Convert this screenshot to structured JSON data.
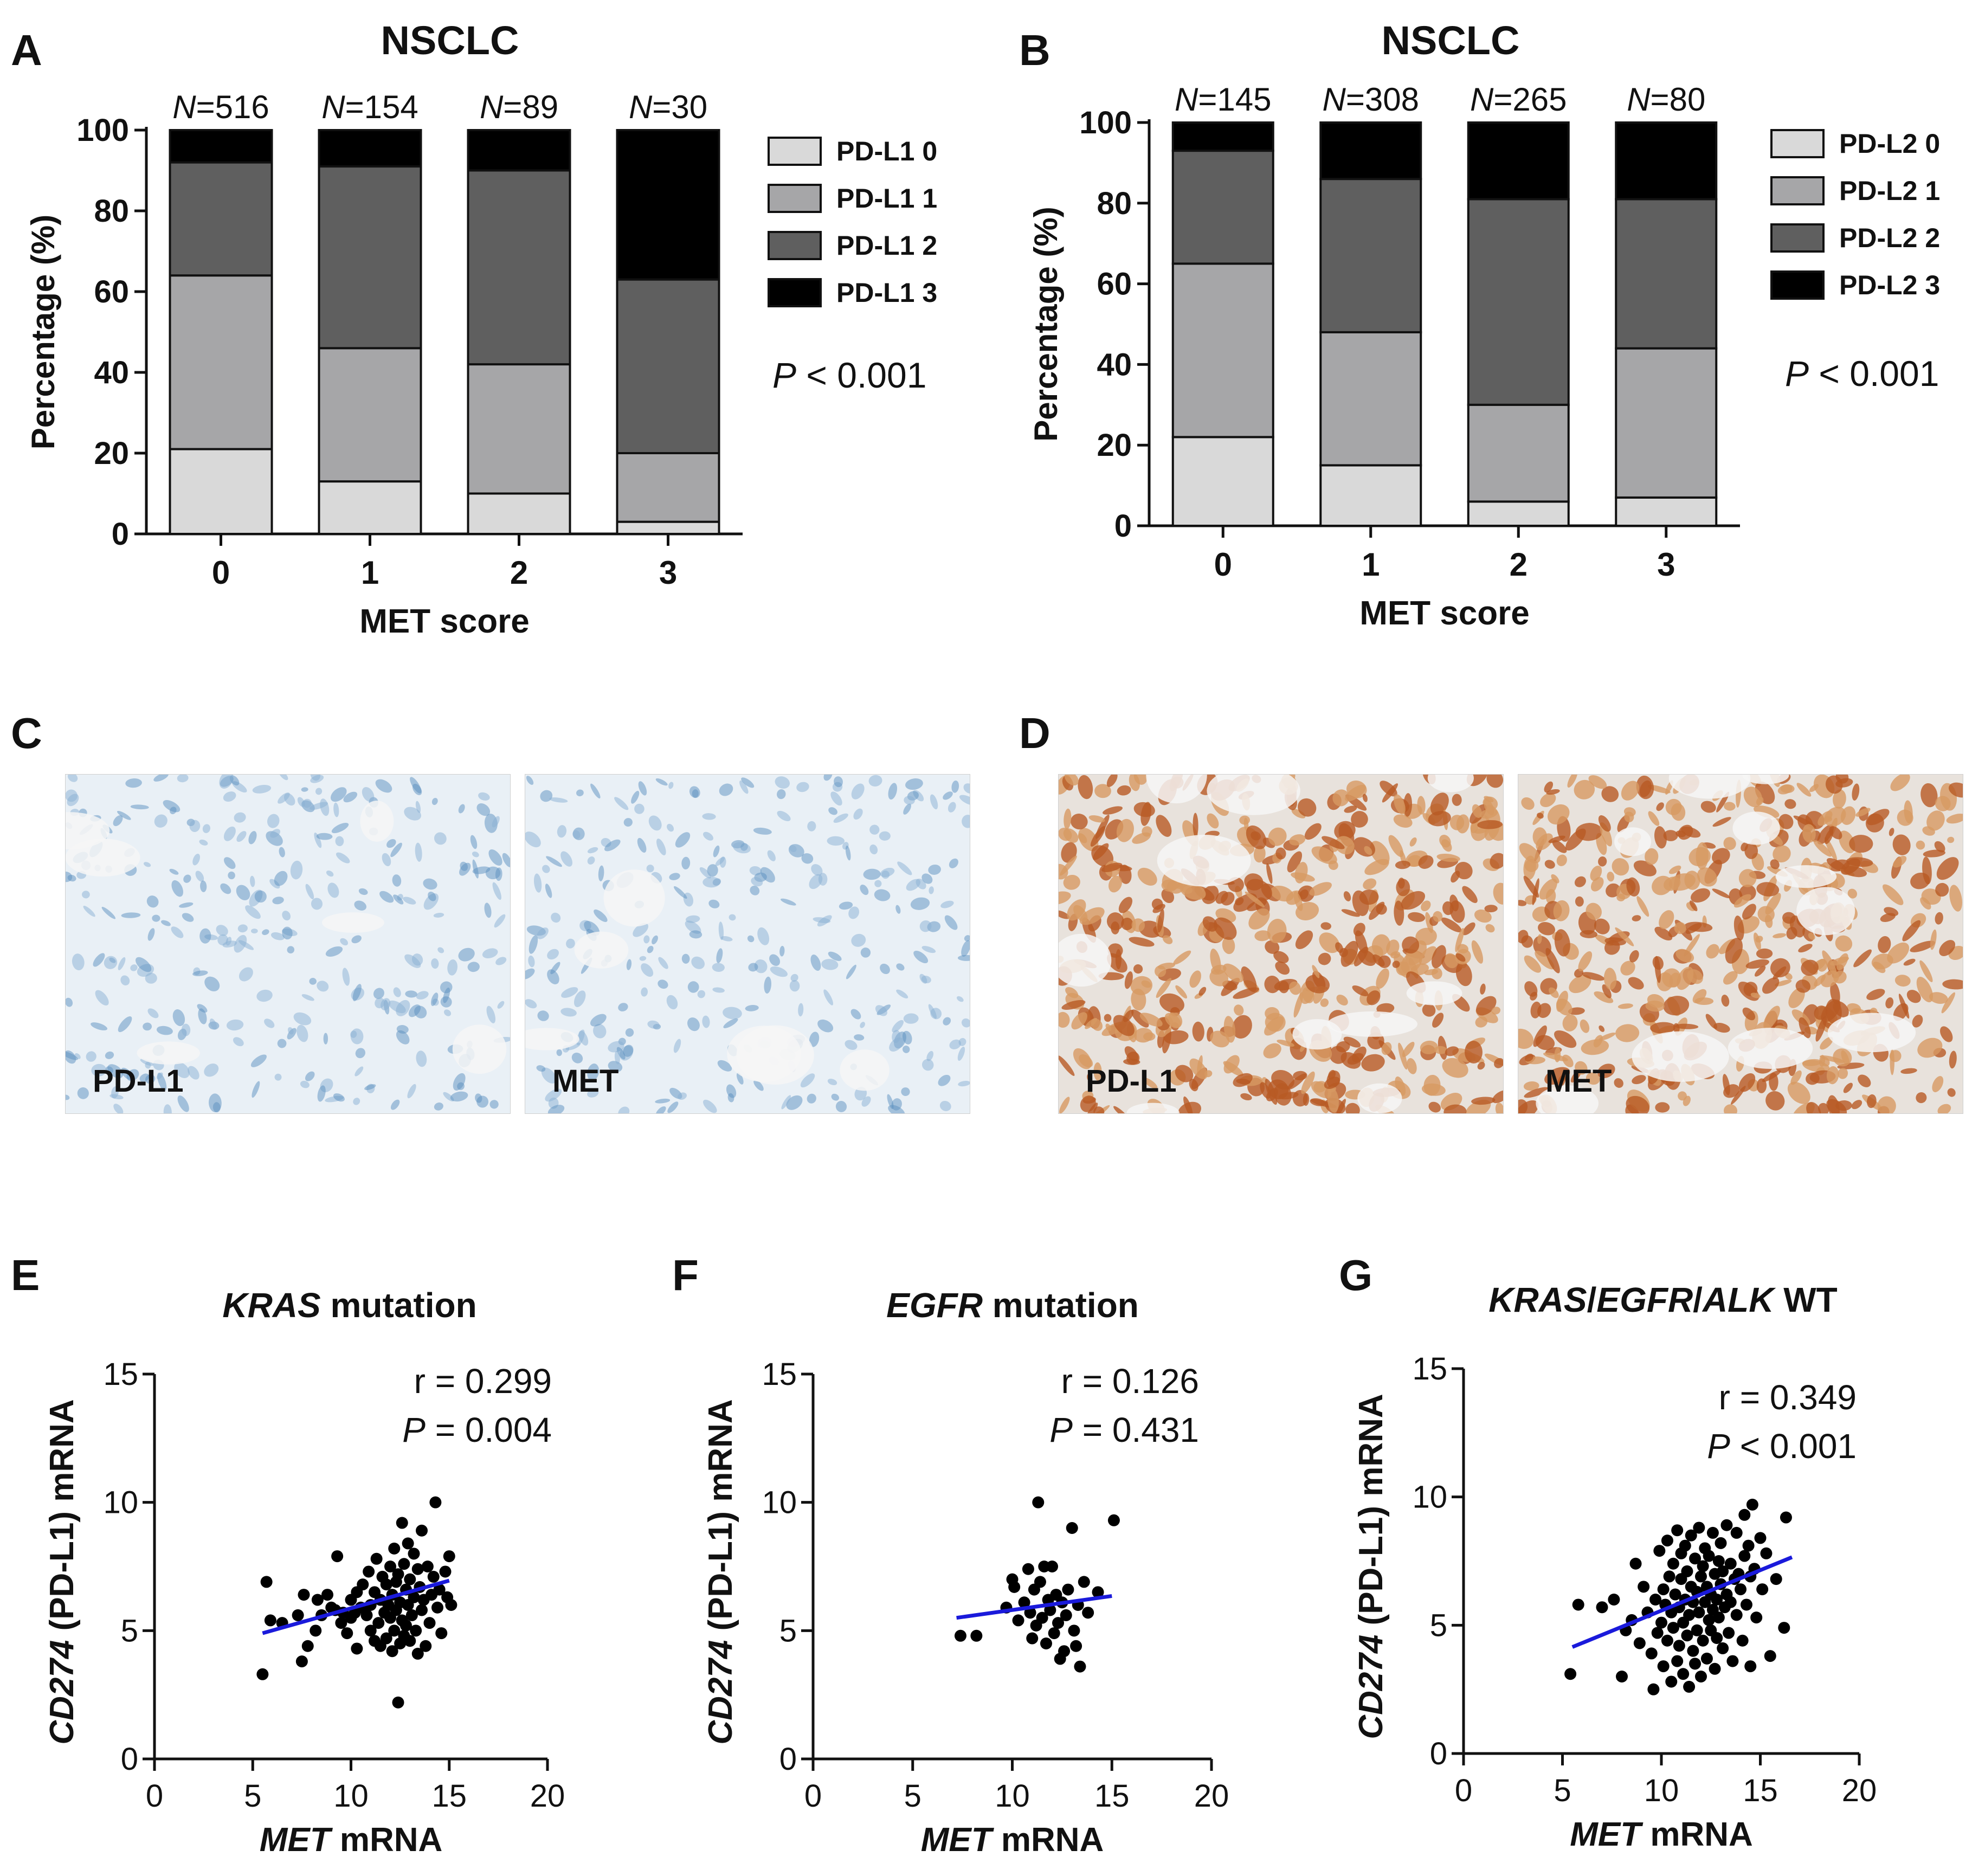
{
  "panel_letters": [
    "A",
    "B",
    "C",
    "D",
    "E",
    "F",
    "G"
  ],
  "chart_data": [
    {
      "id": "A",
      "type": "bar",
      "stacked": true,
      "title": "NSCLC",
      "xlabel": "MET score",
      "ylabel": "Percentage (%)",
      "ylim": [
        0,
        100
      ],
      "yticks": [
        0,
        20,
        40,
        60,
        80,
        100
      ],
      "categories": [
        "0",
        "1",
        "2",
        "3"
      ],
      "n_prefix": "N",
      "n_values": [
        "=516",
        "=154",
        "=89",
        "=30"
      ],
      "series": [
        {
          "name": "PD-L1 0",
          "color": "#d9d9d9",
          "values": [
            21,
            13,
            10,
            3
          ]
        },
        {
          "name": "PD-L1 1",
          "color": "#a6a6a8",
          "values": [
            43,
            33,
            32,
            17
          ]
        },
        {
          "name": "PD-L1 2",
          "color": "#5f5f5f",
          "values": [
            28,
            45,
            48,
            43
          ]
        },
        {
          "name": "PD-L1 3",
          "color": "#000000",
          "values": [
            8,
            9,
            10,
            37
          ]
        }
      ],
      "pvalue_label": "P",
      "pvalue_text": " < 0.001"
    },
    {
      "id": "B",
      "type": "bar",
      "stacked": true,
      "title": "NSCLC",
      "xlabel": "MET score",
      "ylabel": "Percentage (%)",
      "ylim": [
        0,
        100
      ],
      "yticks": [
        0,
        20,
        40,
        60,
        80,
        100
      ],
      "categories": [
        "0",
        "1",
        "2",
        "3"
      ],
      "n_prefix": "N",
      "n_values": [
        "=145",
        "=308",
        "=265",
        "=80"
      ],
      "series": [
        {
          "name": "PD-L2 0",
          "color": "#d9d9d9",
          "values": [
            22,
            15,
            6,
            7
          ]
        },
        {
          "name": "PD-L2 1",
          "color": "#a6a6a8",
          "values": [
            43,
            33,
            24,
            37
          ]
        },
        {
          "name": "PD-L2 2",
          "color": "#5f5f5f",
          "values": [
            28,
            38,
            51,
            37
          ]
        },
        {
          "name": "PD-L2 3",
          "color": "#000000",
          "values": [
            7,
            14,
            19,
            19
          ]
        }
      ],
      "pvalue_label": "P",
      "pvalue_text": " < 0.001"
    },
    {
      "id": "E",
      "type": "scatter",
      "title_italic": "KRAS",
      "title_rest": " mutation",
      "xlabel_italic": "MET",
      "xlabel_rest": " mRNA",
      "ylabel_italic": "CD274",
      "ylabel_rest": " (PD-L1) mRNA",
      "xlim": [
        0,
        20
      ],
      "ylim": [
        0,
        15
      ],
      "xticks": [
        0,
        5,
        10,
        15,
        20
      ],
      "yticks": [
        0,
        5,
        10,
        15
      ],
      "r_text": "r = 0.299",
      "p_label": "P",
      "p_text": " = 0.004",
      "fit": {
        "x": [
          5.5,
          15.0
        ],
        "y": [
          4.9,
          6.95
        ]
      },
      "points": [
        [
          5.5,
          3.3
        ],
        [
          5.7,
          6.9
        ],
        [
          5.9,
          5.4
        ],
        [
          6.5,
          5.3
        ],
        [
          7.3,
          5.6
        ],
        [
          7.5,
          3.8
        ],
        [
          7.6,
          6.4
        ],
        [
          7.8,
          4.4
        ],
        [
          8.2,
          5.0
        ],
        [
          8.3,
          6.2
        ],
        [
          8.5,
          5.6
        ],
        [
          8.8,
          6.4
        ],
        [
          9.0,
          5.9
        ],
        [
          9.2,
          5.8
        ],
        [
          9.3,
          7.9
        ],
        [
          9.5,
          5.3
        ],
        [
          9.6,
          5.7
        ],
        [
          9.8,
          4.9
        ],
        [
          10.0,
          5.5
        ],
        [
          10.0,
          6.2
        ],
        [
          10.2,
          5.7
        ],
        [
          10.3,
          4.3
        ],
        [
          10.3,
          6.5
        ],
        [
          10.5,
          5.9
        ],
        [
          10.6,
          6.8
        ],
        [
          10.8,
          5.6
        ],
        [
          10.9,
          7.3
        ],
        [
          11.0,
          5.0
        ],
        [
          11.0,
          6.0
        ],
        [
          11.2,
          4.6
        ],
        [
          11.2,
          6.5
        ],
        [
          11.3,
          7.8
        ],
        [
          11.4,
          5.3
        ],
        [
          11.5,
          6.2
        ],
        [
          11.5,
          4.4
        ],
        [
          11.6,
          7.1
        ],
        [
          11.7,
          5.7
        ],
        [
          11.8,
          6.8
        ],
        [
          11.8,
          4.7
        ],
        [
          11.9,
          6.0
        ],
        [
          12.0,
          7.5
        ],
        [
          12.0,
          5.5
        ],
        [
          12.1,
          4.2
        ],
        [
          12.1,
          6.4
        ],
        [
          12.2,
          8.2
        ],
        [
          12.2,
          5.0
        ],
        [
          12.3,
          6.9
        ],
        [
          12.3,
          5.8
        ],
        [
          12.4,
          2.2
        ],
        [
          12.4,
          7.2
        ],
        [
          12.5,
          4.5
        ],
        [
          12.5,
          6.1
        ],
        [
          12.6,
          9.2
        ],
        [
          12.6,
          5.4
        ],
        [
          12.7,
          7.6
        ],
        [
          12.7,
          4.8
        ],
        [
          12.8,
          6.6
        ],
        [
          12.8,
          5.2
        ],
        [
          12.9,
          8.4
        ],
        [
          12.9,
          6.0
        ],
        [
          13.0,
          4.6
        ],
        [
          13.0,
          7.0
        ],
        [
          13.1,
          5.6
        ],
        [
          13.2,
          8.0
        ],
        [
          13.2,
          6.3
        ],
        [
          13.3,
          5.0
        ],
        [
          13.4,
          7.4
        ],
        [
          13.4,
          4.1
        ],
        [
          13.5,
          6.7
        ],
        [
          13.6,
          8.9
        ],
        [
          13.6,
          5.8
        ],
        [
          13.7,
          6.2
        ],
        [
          13.8,
          4.4
        ],
        [
          13.9,
          7.5
        ],
        [
          14.0,
          5.3
        ],
        [
          14.1,
          6.4
        ],
        [
          14.2,
          7.1
        ],
        [
          14.3,
          10.0
        ],
        [
          14.4,
          5.9
        ],
        [
          14.5,
          6.6
        ],
        [
          14.6,
          4.9
        ],
        [
          14.8,
          7.3
        ],
        [
          14.9,
          6.3
        ],
        [
          15.0,
          7.9
        ],
        [
          15.1,
          6.0
        ]
      ]
    },
    {
      "id": "F",
      "type": "scatter",
      "title_italic": "EGFR",
      "title_rest": " mutation",
      "xlabel_italic": "MET",
      "xlabel_rest": " mRNA",
      "ylabel_italic": "CD274",
      "ylabel_rest": " (PD-L1) mRNA",
      "xlim": [
        0,
        20
      ],
      "ylim": [
        0,
        15
      ],
      "xticks": [
        0,
        5,
        10,
        15,
        20
      ],
      "yticks": [
        0,
        5,
        10,
        15
      ],
      "r_text": "r = 0.126",
      "p_label": "P",
      "p_text": " = 0.431",
      "fit": {
        "x": [
          7.2,
          15.0
        ],
        "y": [
          5.5,
          6.35
        ]
      },
      "points": [
        [
          7.4,
          4.8
        ],
        [
          8.2,
          4.8
        ],
        [
          9.7,
          5.9
        ],
        [
          10.0,
          7.0
        ],
        [
          10.1,
          6.7
        ],
        [
          10.3,
          5.4
        ],
        [
          10.6,
          6.1
        ],
        [
          10.8,
          7.4
        ],
        [
          10.9,
          5.7
        ],
        [
          11.0,
          4.7
        ],
        [
          11.1,
          6.6
        ],
        [
          11.2,
          5.2
        ],
        [
          11.3,
          10.0
        ],
        [
          11.4,
          6.9
        ],
        [
          11.5,
          5.5
        ],
        [
          11.6,
          7.5
        ],
        [
          11.7,
          4.5
        ],
        [
          11.8,
          6.2
        ],
        [
          11.9,
          5.8
        ],
        [
          12.0,
          7.5
        ],
        [
          12.1,
          4.9
        ],
        [
          12.2,
          6.4
        ],
        [
          12.3,
          5.3
        ],
        [
          12.4,
          3.9
        ],
        [
          12.5,
          6.1
        ],
        [
          12.6,
          4.2
        ],
        [
          12.7,
          5.6
        ],
        [
          12.8,
          6.6
        ],
        [
          13.0,
          9.0
        ],
        [
          13.1,
          5.0
        ],
        [
          13.2,
          4.4
        ],
        [
          13.3,
          6.0
        ],
        [
          13.4,
          3.6
        ],
        [
          13.6,
          6.9
        ],
        [
          13.8,
          5.7
        ],
        [
          14.3,
          6.5
        ],
        [
          15.1,
          9.3
        ]
      ]
    },
    {
      "id": "G",
      "type": "scatter",
      "title_parts": [
        "KRAS",
        "/",
        "EGFR",
        "/",
        "ALK",
        " WT"
      ],
      "xlabel_italic": "MET",
      "xlabel_rest": " mRNA",
      "ylabel_italic": "CD274",
      "ylabel_rest": " (PD-L1) mRNA",
      "xlim": [
        0,
        20
      ],
      "ylim": [
        0,
        15
      ],
      "xticks": [
        0,
        5,
        10,
        15,
        20
      ],
      "yticks": [
        0,
        5,
        10,
        15
      ],
      "r_text": "r = 0.349",
      "p_label": "P",
      "p_text": " < 0.001",
      "fit": {
        "x": [
          5.5,
          16.6
        ],
        "y": [
          4.15,
          7.65
        ]
      },
      "points": [
        [
          5.4,
          3.1
        ],
        [
          5.8,
          5.8
        ],
        [
          7.0,
          5.7
        ],
        [
          7.6,
          6.0
        ],
        [
          8.0,
          3.0
        ],
        [
          8.2,
          4.8
        ],
        [
          8.5,
          5.2
        ],
        [
          8.7,
          7.4
        ],
        [
          8.9,
          4.3
        ],
        [
          9.1,
          6.5
        ],
        [
          9.3,
          5.5
        ],
        [
          9.5,
          3.9
        ],
        [
          9.6,
          2.5
        ],
        [
          9.7,
          6.0
        ],
        [
          9.8,
          4.7
        ],
        [
          9.9,
          7.9
        ],
        [
          10.0,
          5.1
        ],
        [
          10.1,
          3.4
        ],
        [
          10.1,
          6.4
        ],
        [
          10.2,
          5.8
        ],
        [
          10.3,
          8.3
        ],
        [
          10.3,
          4.4
        ],
        [
          10.4,
          6.9
        ],
        [
          10.5,
          5.5
        ],
        [
          10.5,
          2.8
        ],
        [
          10.6,
          7.4
        ],
        [
          10.6,
          4.9
        ],
        [
          10.7,
          6.2
        ],
        [
          10.8,
          3.6
        ],
        [
          10.8,
          8.7
        ],
        [
          10.9,
          5.7
        ],
        [
          10.9,
          4.2
        ],
        [
          11.0,
          6.8
        ],
        [
          11.0,
          7.8
        ],
        [
          11.1,
          5.1
        ],
        [
          11.1,
          3.1
        ],
        [
          11.2,
          6.0
        ],
        [
          11.2,
          8.1
        ],
        [
          11.3,
          4.6
        ],
        [
          11.3,
          7.1
        ],
        [
          11.4,
          5.4
        ],
        [
          11.4,
          2.6
        ],
        [
          11.5,
          6.5
        ],
        [
          11.5,
          8.5
        ],
        [
          11.6,
          4.0
        ],
        [
          11.6,
          5.9
        ],
        [
          11.7,
          7.6
        ],
        [
          11.7,
          3.5
        ],
        [
          11.8,
          6.3
        ],
        [
          11.8,
          4.8
        ],
        [
          11.9,
          8.8
        ],
        [
          11.9,
          5.5
        ],
        [
          12.0,
          6.9
        ],
        [
          12.0,
          3.0
        ],
        [
          12.1,
          7.3
        ],
        [
          12.1,
          4.4
        ],
        [
          12.2,
          5.9
        ],
        [
          12.2,
          8.0
        ],
        [
          12.3,
          6.5
        ],
        [
          12.3,
          3.7
        ],
        [
          12.4,
          5.2
        ],
        [
          12.4,
          7.7
        ],
        [
          12.5,
          4.8
        ],
        [
          12.5,
          6.2
        ],
        [
          12.6,
          8.6
        ],
        [
          12.6,
          5.6
        ],
        [
          12.7,
          7.0
        ],
        [
          12.7,
          3.3
        ],
        [
          12.8,
          6.0
        ],
        [
          12.8,
          4.5
        ],
        [
          12.9,
          7.5
        ],
        [
          12.9,
          5.3
        ],
        [
          13.0,
          8.2
        ],
        [
          13.0,
          6.6
        ],
        [
          13.1,
          4.1
        ],
        [
          13.1,
          7.1
        ],
        [
          13.2,
          5.7
        ],
        [
          13.3,
          8.9
        ],
        [
          13.3,
          6.2
        ],
        [
          13.4,
          4.7
        ],
        [
          13.5,
          7.4
        ],
        [
          13.5,
          5.9
        ],
        [
          13.6,
          3.6
        ],
        [
          13.7,
          6.8
        ],
        [
          13.8,
          8.6
        ],
        [
          13.8,
          5.4
        ],
        [
          13.9,
          7.0
        ],
        [
          14.0,
          6.4
        ],
        [
          14.1,
          4.4
        ],
        [
          14.2,
          9.3
        ],
        [
          14.2,
          7.7
        ],
        [
          14.3,
          5.8
        ],
        [
          14.4,
          8.1
        ],
        [
          14.5,
          6.9
        ],
        [
          14.5,
          3.4
        ],
        [
          14.6,
          9.7
        ],
        [
          14.7,
          7.2
        ],
        [
          14.8,
          5.3
        ],
        [
          15.0,
          8.4
        ],
        [
          15.1,
          6.4
        ],
        [
          15.3,
          7.8
        ],
        [
          15.5,
          3.8
        ],
        [
          15.8,
          6.8
        ],
        [
          16.2,
          4.9
        ],
        [
          16.3,
          9.2
        ]
      ]
    }
  ],
  "ihc_panels": {
    "C": {
      "left_label": "PD-L1",
      "right_label": "MET",
      "base": "#e9f0f6",
      "cell": "#5b8fc0",
      "cell2": "#8ab0d4"
    },
    "D": {
      "left_label": "PD-L1",
      "right_label": "MET",
      "base": "#e8e2dc",
      "cell": "#b85a24",
      "cell2": "#d79a63"
    }
  }
}
